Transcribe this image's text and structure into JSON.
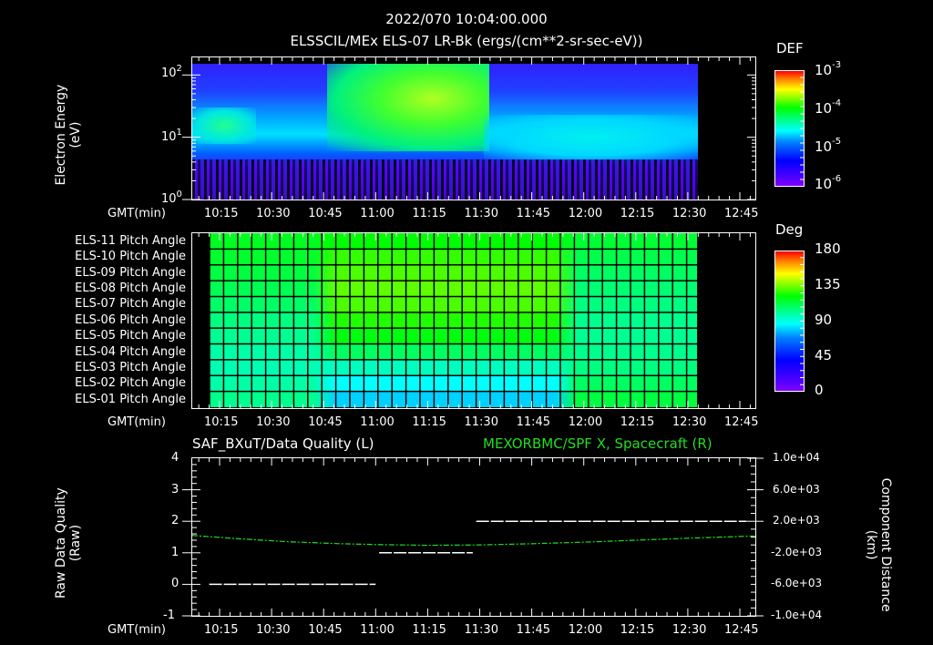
{
  "header": {
    "datetime": "2022/070 10:04:00.000",
    "subtitle": "ELSSCIL/MEx ELS-07 LR-Bk  (ergs/(cm**2-sr-sec-eV))"
  },
  "time_axis": {
    "label": "GMT(min)",
    "ticks": [
      "10:15",
      "10:30",
      "10:45",
      "11:00",
      "11:15",
      "11:30",
      "11:45",
      "12:00",
      "12:15",
      "12:30",
      "12:45"
    ]
  },
  "panel1": {
    "ylabel_line1": "Electron Energy",
    "ylabel_line2": "(eV)",
    "yticks": [
      {
        "base": "10",
        "exp": "2"
      },
      {
        "base": "10",
        "exp": "1"
      },
      {
        "base": "10",
        "exp": "0"
      }
    ],
    "colorbar": {
      "title": "DEF",
      "ticks": [
        {
          "base": "10",
          "exp": "-3"
        },
        {
          "base": "10",
          "exp": "-4"
        },
        {
          "base": "10",
          "exp": "-5"
        },
        {
          "base": "10",
          "exp": "-6"
        }
      ]
    }
  },
  "panel2": {
    "rows": [
      "ELS-11 Pitch Angle",
      "ELS-10 Pitch Angle",
      "ELS-09 Pitch Angle",
      "ELS-08 Pitch Angle",
      "ELS-07 Pitch Angle",
      "ELS-06 Pitch Angle",
      "ELS-05 Pitch Angle",
      "ELS-04 Pitch Angle",
      "ELS-03 Pitch Angle",
      "ELS-02 Pitch Angle",
      "ELS-01 Pitch Angle"
    ],
    "colorbar": {
      "title": "Deg",
      "ticks": [
        "180",
        "135",
        "90",
        "45",
        "0"
      ]
    }
  },
  "panel3": {
    "title_left": "SAF_BXuT/Data Quality (L)",
    "title_right": "MEXORBMC/SPF X, Spacecraft (R)",
    "ylabel_left_line1": "Raw Data Quality",
    "ylabel_left_line2": "(Raw)",
    "ylabel_right_line1": "Component Distance",
    "ylabel_right_line2": "(km)",
    "yticks_left": [
      "4",
      "3",
      "2",
      "1",
      "0",
      "-1"
    ],
    "yticks_right": [
      "1.0e+04",
      "6.0e+03",
      "2.0e+03",
      "-2.0e+03",
      "-6.0e+03",
      "-1.0e+04"
    ]
  },
  "colors": {
    "background": "#000000",
    "axes": "#ffffff",
    "spf_x_line": "#22dd22",
    "quality_line": "#ffffff"
  },
  "chart_data": [
    {
      "type": "heatmap",
      "title": "ELSSCIL/MEx ELS-07 LR-Bk (ergs/(cm**2-sr-sec-eV))",
      "xlabel": "GMT(min)",
      "ylabel": "Electron Energy (eV)",
      "yscale": "log",
      "ylim": [
        1,
        150
      ],
      "xlim": [
        "10:07",
        "12:50"
      ],
      "data_extent": [
        "10:07",
        "12:33"
      ],
      "colorbar": {
        "label": "DEF",
        "scale": "log",
        "range": [
          1e-06,
          0.001
        ]
      },
      "features": [
        {
          "time": [
            "10:07",
            "10:25"
          ],
          "energy_eV": [
            8,
            20
          ],
          "level": "~3e-5 (cyan/green)"
        },
        {
          "time": [
            "10:45",
            "11:31"
          ],
          "energy_eV": [
            8,
            100
          ],
          "level": "~1e-4 to 2e-4 (green/yellow-green)"
        },
        {
          "time": [
            "11:31",
            "12:33"
          ],
          "energy_eV": [
            4,
            15
          ],
          "level": "~1e-5 (cyan)"
        },
        {
          "time": [
            "10:07",
            "12:33"
          ],
          "energy_eV": [
            1,
            4
          ],
          "level": "~1e-6 (sparse purple/black noise)"
        }
      ]
    },
    {
      "type": "heatmap",
      "title": "Pitch Angle",
      "xlabel": "GMT(min)",
      "categories": [
        "ELS-11",
        "ELS-10",
        "ELS-09",
        "ELS-08",
        "ELS-07",
        "ELS-06",
        "ELS-05",
        "ELS-04",
        "ELS-03",
        "ELS-02",
        "ELS-01"
      ],
      "colorbar": {
        "label": "Deg",
        "range": [
          0,
          180
        ],
        "ticks": [
          0,
          45,
          90,
          135,
          180
        ]
      },
      "data_extent": [
        "10:12",
        "12:32"
      ],
      "approx_values_deg": {
        "10:12-10:45": [
          95,
          93,
          90,
          87,
          84,
          80,
          77,
          74,
          72,
          74,
          78
        ],
        "10:45-11:55": [
          100,
          108,
          112,
          115,
          112,
          105,
          98,
          85,
          70,
          60,
          53
        ],
        "11:55-12:32": [
          92,
          88,
          85,
          82,
          80,
          78,
          77,
          78,
          80,
          85,
          90
        ]
      }
    },
    {
      "type": "line",
      "title_left": "SAF_BXuT/Data Quality (L)",
      "title_right": "MEXORBMC/SPF X, Spacecraft (R)",
      "xlabel": "GMT(min)",
      "ylabel_left": "Raw Data Quality (Raw)",
      "ylabel_right": "Component Distance (km)",
      "ylim_left": [
        -1,
        4
      ],
      "ylim_right": [
        -10000,
        10000
      ],
      "series": [
        {
          "name": "Data Quality (L)",
          "axis": "left",
          "color": "#ffffff",
          "points": [
            [
              "10:12",
              0
            ],
            [
              "11:00",
              0
            ],
            [
              "11:01",
              1
            ],
            [
              "11:28",
              1
            ],
            [
              "11:29",
              2
            ],
            [
              "12:47",
              2
            ]
          ]
        },
        {
          "name": "SPF X, Spacecraft (R)",
          "axis": "right",
          "color": "#22dd22",
          "points": [
            [
              "10:07",
              200
            ],
            [
              "10:20",
              -200
            ],
            [
              "10:35",
              -600
            ],
            [
              "10:50",
              -850
            ],
            [
              "11:00",
              -950
            ],
            [
              "11:15",
              -1050
            ],
            [
              "11:30",
              -1000
            ],
            [
              "11:45",
              -850
            ],
            [
              "12:00",
              -650
            ],
            [
              "12:15",
              -400
            ],
            [
              "12:30",
              -150
            ],
            [
              "12:50",
              150
            ]
          ]
        }
      ]
    }
  ]
}
